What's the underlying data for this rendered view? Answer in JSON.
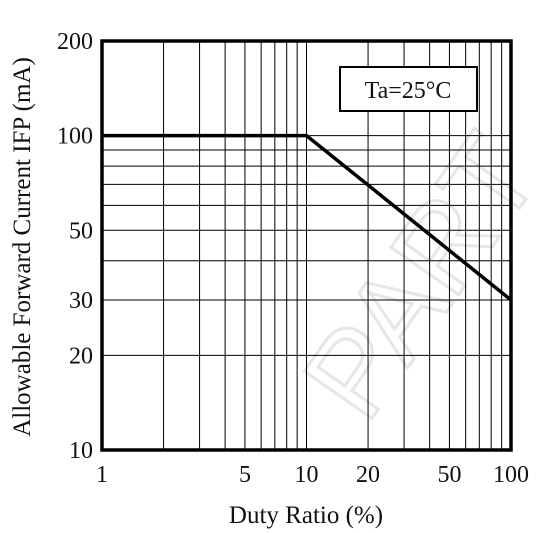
{
  "chart_data": {
    "type": "line",
    "xscale": "log",
    "yscale": "log",
    "xlim": [
      1,
      100
    ],
    "ylim": [
      10,
      200
    ],
    "xlabel": "Duty Ratio (%)",
    "ylabel": "Allowable Forward Current IFP (mA)",
    "xticks": [
      1,
      5,
      10,
      20,
      50,
      100
    ],
    "xtick_labels": [
      "1",
      "5",
      "10",
      "20",
      "50",
      "100"
    ],
    "yticks": [
      10,
      20,
      30,
      50,
      100,
      200
    ],
    "ytick_labels": [
      "10",
      "20",
      "30",
      "50",
      "100",
      "200"
    ],
    "grid": true,
    "series": [
      {
        "x": [
          1,
          10,
          100
        ],
        "y": [
          100,
          100,
          30
        ],
        "color": "#000000"
      }
    ],
    "annotation": {
      "text": "Ta=25°C"
    }
  },
  "watermark": {
    "text": "PART",
    "color": "#e6e6e6"
  }
}
